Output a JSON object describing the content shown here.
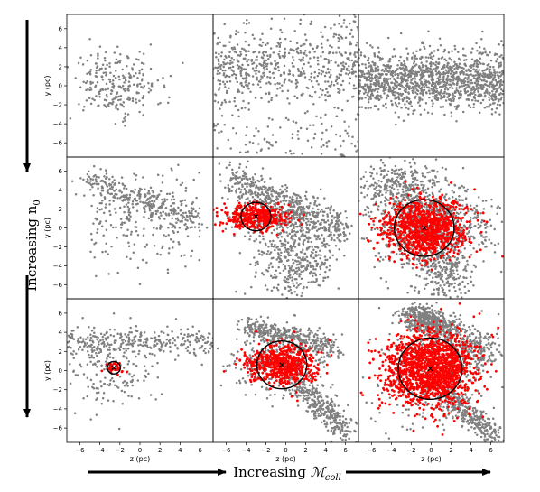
{
  "figure": {
    "row_axis_label": "Increasing n",
    "row_axis_label_sub": "0",
    "col_axis_label": "Increasing ",
    "col_axis_symbol": "ℳ",
    "col_axis_symbol_sub": "coll"
  },
  "chart_data": {
    "type": "scatter",
    "grid_rows": 3,
    "grid_cols": 3,
    "xlabel": "z (pc)",
    "ylabel": "y (pc)",
    "xlim": [
      -7.3,
      7.3
    ],
    "ylim": [
      -7.5,
      7.5
    ],
    "xticks": [
      -6,
      -4,
      -2,
      0,
      2,
      4,
      6
    ],
    "yticks": [
      -6,
      -4,
      -2,
      0,
      2,
      4,
      6
    ],
    "colors": {
      "gas": "#808080",
      "star_forming": "#ff0000",
      "circle": "#000000"
    },
    "panels": [
      {
        "row": 0,
        "col": 0,
        "gas_points": 250,
        "gas_shape": "sparse band y≈-1..2",
        "red_points": 0,
        "circle": null
      },
      {
        "row": 0,
        "col": 1,
        "gas_points": 700,
        "gas_shape": "diffuse, denser near y≈2",
        "red_points": 0,
        "circle": null
      },
      {
        "row": 0,
        "col": 2,
        "gas_points": 1300,
        "gas_shape": "dense band y≈-1..2",
        "red_points": 0,
        "circle": null
      },
      {
        "row": 1,
        "col": 0,
        "gas_points": 500,
        "gas_shape": "diagonal filament from upper-left",
        "red_points": 0,
        "circle": null
      },
      {
        "row": 1,
        "col": 1,
        "gas_points": 1100,
        "gas_shape": "diagonal filament plus lower spray",
        "red_points": 380,
        "circle": {
          "cx": -3.0,
          "cy": 1.2,
          "r": 1.5
        },
        "marker": [
          -3.0,
          1.2
        ]
      },
      {
        "row": 1,
        "col": 2,
        "gas_points": 1400,
        "gas_shape": "dense cloud",
        "red_points": 1000,
        "circle": {
          "cx": -0.7,
          "cy": 0.0,
          "r": 3.0
        },
        "marker": [
          -0.7,
          0.0
        ]
      },
      {
        "row": 2,
        "col": 0,
        "gas_points": 450,
        "gas_shape": "horizontal filament y≈2..4",
        "red_points": 40,
        "circle": {
          "cx": -2.6,
          "cy": 0.3,
          "r": 0.65
        },
        "marker": [
          -2.6,
          0.3
        ]
      },
      {
        "row": 2,
        "col": 1,
        "gas_points": 1000,
        "gas_shape": "filament with tail to lower right",
        "red_points": 600,
        "circle": {
          "cx": -0.4,
          "cy": 0.6,
          "r": 2.5
        },
        "marker": [
          -0.4,
          0.6
        ]
      },
      {
        "row": 2,
        "col": 2,
        "gas_points": 1400,
        "gas_shape": "dense cloud with arms",
        "red_points": 1500,
        "circle": {
          "cx": -0.1,
          "cy": 0.2,
          "r": 3.2
        },
        "marker": [
          -0.1,
          0.2
        ]
      }
    ]
  }
}
